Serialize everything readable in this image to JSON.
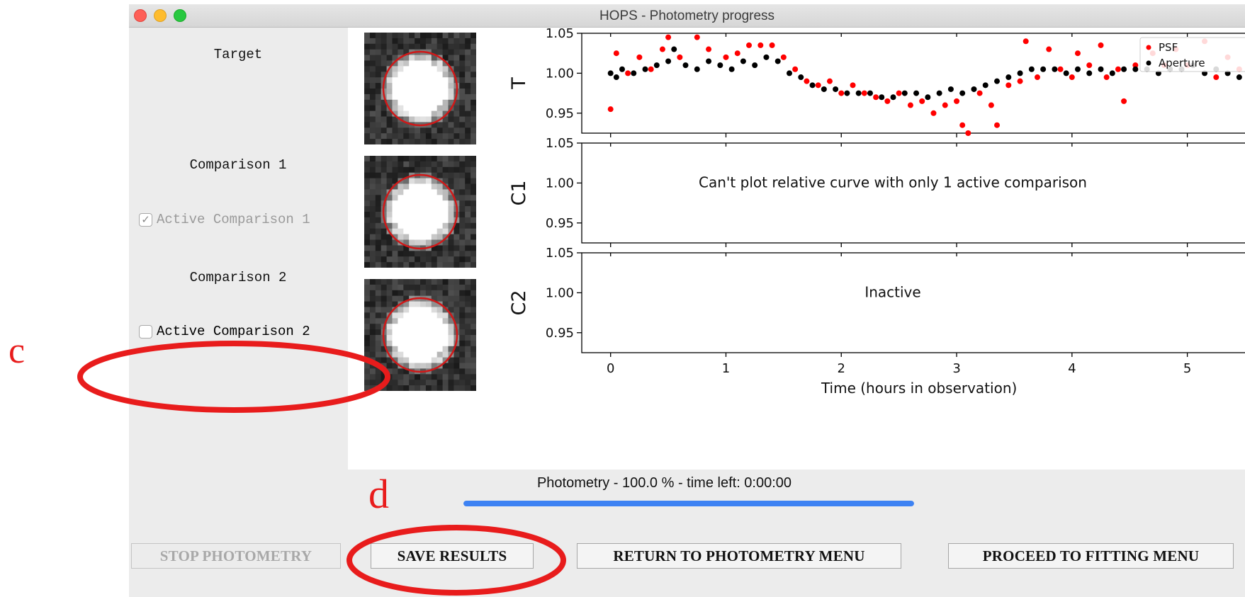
{
  "window": {
    "title": "HOPS - Photometry progress"
  },
  "targets": {
    "target_label": "Target",
    "comparison1_label": "Comparison 1",
    "comparison1_active_label": "Active Comparison 1",
    "comparison1_checked": true,
    "comparison2_label": "Comparison 2",
    "comparison2_active_label": "Active Comparison 2",
    "comparison2_checked": false
  },
  "chart_data": {
    "type": "scatter",
    "xlabel": "Time (hours in observation)",
    "xlim": [
      -0.25,
      5.5
    ],
    "xticks": [
      0,
      1,
      2,
      3,
      4,
      5
    ],
    "ylim": [
      0.925,
      1.05
    ],
    "yticks": [
      0.95,
      1.0,
      1.05
    ],
    "ytick_labels": [
      "0.95",
      "1.00",
      "1.05"
    ],
    "legend": {
      "placement": "top-right",
      "entries": [
        {
          "name": "PSF",
          "color": "#ff0000"
        },
        {
          "name": "Aperture",
          "color": "#000000"
        }
      ]
    },
    "panels": [
      {
        "ylabel": "T",
        "message": ""
      },
      {
        "ylabel": "C1",
        "message": "Can't plot relative curve with only 1 active comparison"
      },
      {
        "ylabel": "C2",
        "message": "Inactive"
      }
    ],
    "series": [
      {
        "name": "PSF",
        "color": "#ff0000",
        "points": [
          [
            0,
            0.955
          ],
          [
            0.05,
            1.025
          ],
          [
            0.15,
            1.0
          ],
          [
            0.25,
            1.02
          ],
          [
            0.35,
            1.005
          ],
          [
            0.45,
            1.03
          ],
          [
            0.5,
            1.045
          ],
          [
            0.6,
            1.02
          ],
          [
            0.75,
            1.045
          ],
          [
            0.85,
            1.03
          ],
          [
            1.0,
            1.02
          ],
          [
            1.1,
            1.025
          ],
          [
            1.2,
            1.035
          ],
          [
            1.3,
            1.035
          ],
          [
            1.4,
            1.035
          ],
          [
            1.5,
            1.02
          ],
          [
            1.6,
            1.005
          ],
          [
            1.7,
            0.99
          ],
          [
            1.8,
            0.985
          ],
          [
            1.9,
            0.99
          ],
          [
            2.0,
            0.975
          ],
          [
            2.1,
            0.985
          ],
          [
            2.2,
            0.975
          ],
          [
            2.3,
            0.97
          ],
          [
            2.4,
            0.965
          ],
          [
            2.5,
            0.975
          ],
          [
            2.6,
            0.96
          ],
          [
            2.7,
            0.965
          ],
          [
            2.8,
            0.95
          ],
          [
            2.9,
            0.96
          ],
          [
            3.0,
            0.965
          ],
          [
            3.05,
            0.935
          ],
          [
            3.1,
            0.925
          ],
          [
            3.2,
            0.975
          ],
          [
            3.3,
            0.96
          ],
          [
            3.35,
            0.935
          ],
          [
            3.45,
            0.985
          ],
          [
            3.55,
            0.99
          ],
          [
            3.6,
            1.04
          ],
          [
            3.7,
            0.995
          ],
          [
            3.8,
            1.03
          ],
          [
            3.9,
            1.005
          ],
          [
            4.0,
            0.995
          ],
          [
            4.05,
            1.025
          ],
          [
            4.15,
            1.01
          ],
          [
            4.25,
            1.035
          ],
          [
            4.3,
            0.995
          ],
          [
            4.4,
            1.005
          ],
          [
            4.45,
            0.965
          ],
          [
            4.55,
            1.01
          ],
          [
            4.7,
            1.025
          ],
          [
            4.8,
            1.01
          ],
          [
            4.9,
            1.03
          ],
          [
            5.0,
            1.01
          ],
          [
            5.15,
            1.04
          ],
          [
            5.25,
            0.995
          ],
          [
            5.35,
            1.02
          ],
          [
            5.45,
            1.005
          ]
        ]
      },
      {
        "name": "Aperture",
        "color": "#000000",
        "points": [
          [
            0,
            1.0
          ],
          [
            0.05,
            0.995
          ],
          [
            0.1,
            1.005
          ],
          [
            0.2,
            1.0
          ],
          [
            0.3,
            1.005
          ],
          [
            0.4,
            1.01
          ],
          [
            0.5,
            1.015
          ],
          [
            0.55,
            1.03
          ],
          [
            0.65,
            1.01
          ],
          [
            0.75,
            1.005
          ],
          [
            0.85,
            1.015
          ],
          [
            0.95,
            1.01
          ],
          [
            1.05,
            1.005
          ],
          [
            1.15,
            1.015
          ],
          [
            1.25,
            1.01
          ],
          [
            1.35,
            1.02
          ],
          [
            1.45,
            1.015
          ],
          [
            1.55,
            1.0
          ],
          [
            1.65,
            0.995
          ],
          [
            1.75,
            0.985
          ],
          [
            1.85,
            0.98
          ],
          [
            1.95,
            0.98
          ],
          [
            2.05,
            0.975
          ],
          [
            2.15,
            0.975
          ],
          [
            2.25,
            0.975
          ],
          [
            2.35,
            0.97
          ],
          [
            2.45,
            0.97
          ],
          [
            2.55,
            0.975
          ],
          [
            2.65,
            0.975
          ],
          [
            2.75,
            0.97
          ],
          [
            2.85,
            0.975
          ],
          [
            2.95,
            0.98
          ],
          [
            3.05,
            0.975
          ],
          [
            3.15,
            0.98
          ],
          [
            3.25,
            0.985
          ],
          [
            3.35,
            0.99
          ],
          [
            3.45,
            0.995
          ],
          [
            3.55,
            1.0
          ],
          [
            3.65,
            1.005
          ],
          [
            3.75,
            1.005
          ],
          [
            3.85,
            1.005
          ],
          [
            3.95,
            1.0
          ],
          [
            4.05,
            1.005
          ],
          [
            4.15,
            1.0
          ],
          [
            4.25,
            1.005
          ],
          [
            4.35,
            1.0
          ],
          [
            4.45,
            1.005
          ],
          [
            4.55,
            1.005
          ],
          [
            4.65,
            1.005
          ],
          [
            4.75,
            1.0
          ],
          [
            4.85,
            1.005
          ],
          [
            4.95,
            1.005
          ],
          [
            5.05,
            1.01
          ],
          [
            5.15,
            1.0
          ],
          [
            5.25,
            1.005
          ],
          [
            5.35,
            1.0
          ],
          [
            5.45,
            0.995
          ]
        ]
      }
    ]
  },
  "progress": {
    "status_text": "Photometry - 100.0 % - time left: 0:00:00",
    "fraction": 1.0
  },
  "buttons": {
    "stop": "STOP PHOTOMETRY",
    "save": "SAVE RESULTS",
    "return": "RETURN TO PHOTOMETRY MENU",
    "proceed": "PROCEED TO FITTING MENU"
  },
  "annotations": {
    "c": "c",
    "d": "d",
    "color": "#e81c1c"
  }
}
